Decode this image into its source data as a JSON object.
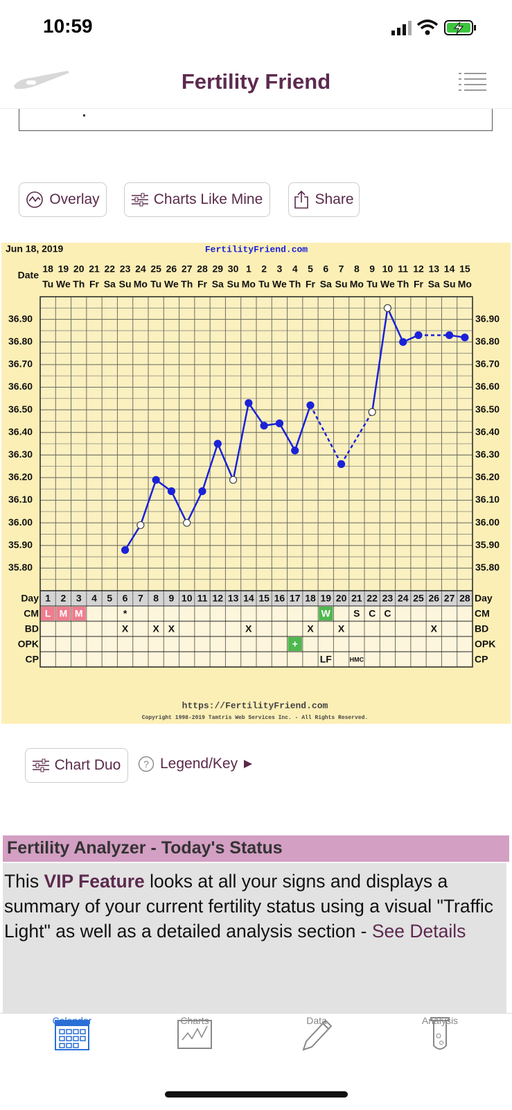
{
  "status_bar": {
    "time": "10:59"
  },
  "header": {
    "title": "Fertility Friend"
  },
  "buttons": [
    "Overlay",
    "Charts Like Mine",
    "Share"
  ],
  "chart_data": {
    "type": "line",
    "title": "Jun 18, 2019",
    "site": "FertilityFriend.com",
    "date_label": "Date",
    "dates": [
      "18",
      "19",
      "20",
      "21",
      "22",
      "23",
      "24",
      "25",
      "26",
      "27",
      "28",
      "29",
      "30",
      "1",
      "2",
      "3",
      "4",
      "5",
      "6",
      "7",
      "8",
      "9",
      "10",
      "11",
      "12",
      "13",
      "14",
      "15"
    ],
    "weekdays": [
      "Tu",
      "We",
      "Th",
      "Fr",
      "Sa",
      "Su",
      "Mo",
      "Tu",
      "We",
      "Th",
      "Fr",
      "Sa",
      "Su",
      "Mo",
      "Tu",
      "We",
      "Th",
      "Fr",
      "Sa",
      "Su",
      "Mo",
      "Tu",
      "We",
      "Th",
      "Fr",
      "Sa",
      "Su",
      "Mo"
    ],
    "x_label": "Day",
    "categories": [
      1,
      2,
      3,
      4,
      5,
      6,
      7,
      8,
      9,
      10,
      11,
      12,
      13,
      14,
      15,
      16,
      17,
      18,
      19,
      20,
      21,
      22,
      23,
      24,
      25,
      26,
      27,
      28
    ],
    "values": [
      null,
      null,
      null,
      null,
      null,
      35.88,
      35.99,
      36.19,
      36.14,
      36.0,
      36.14,
      36.35,
      36.19,
      36.53,
      36.43,
      36.44,
      36.32,
      36.52,
      null,
      36.26,
      null,
      36.49,
      36.95,
      36.8,
      36.83,
      null,
      36.83,
      36.82
    ],
    "color": "#1a22d8",
    "hollow_days": [
      7,
      10,
      13,
      22,
      23
    ],
    "ylim": [
      35.7,
      37.0
    ],
    "yticks": [
      {
        "value": 35.8,
        "label": "35.80"
      },
      {
        "value": 35.9,
        "label": "35.90"
      },
      {
        "value": 36.0,
        "label": "36.00"
      },
      {
        "value": 36.1,
        "label": "36.10"
      },
      {
        "value": 36.2,
        "label": "36.20"
      },
      {
        "value": 36.3,
        "label": "36.30"
      },
      {
        "value": 36.4,
        "label": "36.40"
      },
      {
        "value": 36.5,
        "label": "36.50"
      },
      {
        "value": 36.6,
        "label": "36.60"
      },
      {
        "value": 36.7,
        "label": "36.70"
      },
      {
        "value": 36.8,
        "label": "36.80"
      },
      {
        "value": 36.9,
        "label": "36.90"
      }
    ],
    "grid": true,
    "rows": [
      {
        "label": "CM",
        "cells": [
          "L",
          "M",
          "M",
          null,
          null,
          "*",
          null,
          null,
          null,
          null,
          null,
          null,
          null,
          null,
          null,
          null,
          null,
          null,
          "W",
          null,
          "S",
          "C",
          "C",
          null,
          null,
          null,
          null,
          null
        ],
        "colors": [
          "#ee7d8f",
          "#ee7d8f",
          "#ee7d8f",
          null,
          null,
          null,
          null,
          null,
          null,
          null,
          null,
          null,
          null,
          null,
          null,
          null,
          null,
          null,
          "#4fb84f",
          null,
          null,
          null,
          null,
          null,
          null,
          null,
          null,
          null
        ]
      },
      {
        "label": "BD",
        "cells": [
          null,
          null,
          null,
          null,
          null,
          "X",
          null,
          "X",
          "X",
          null,
          null,
          null,
          null,
          "X",
          null,
          null,
          null,
          "X",
          null,
          "X",
          null,
          null,
          null,
          null,
          null,
          "X",
          null,
          null
        ]
      },
      {
        "label": "OPK",
        "cells": [
          null,
          null,
          null,
          null,
          null,
          null,
          null,
          null,
          null,
          null,
          null,
          null,
          null,
          null,
          null,
          null,
          "+",
          null,
          null,
          null,
          null,
          null,
          null,
          null,
          null,
          null,
          null,
          null
        ],
        "colors": [
          null,
          null,
          null,
          null,
          null,
          null,
          null,
          null,
          null,
          null,
          null,
          null,
          null,
          null,
          null,
          null,
          "#4fb84f",
          null,
          null,
          null,
          null,
          null,
          null,
          null,
          null,
          null,
          null,
          null
        ]
      },
      {
        "label": "CP",
        "cells": [
          null,
          null,
          null,
          null,
          null,
          null,
          null,
          null,
          null,
          null,
          null,
          null,
          null,
          null,
          null,
          null,
          null,
          null,
          "LF",
          null,
          "HMC",
          null,
          null,
          null,
          null,
          null,
          null,
          null
        ]
      }
    ],
    "footer_url": "https://FertilityFriend.com",
    "copyright": "Copyright 1998-2019 Tamtris Web Services Inc. - All Rights Reserved."
  },
  "bottom_buttons": [
    "Chart Duo",
    "Legend/Key"
  ],
  "analyzer": {
    "title": "Fertility Analyzer - Today's Status",
    "text_parts": [
      "This ",
      "VIP Feature",
      " looks at all your signs and displays a summary of your current fertility status using a visual \"Traffic Light\" as well as a detailed analysis section - ",
      "See Details"
    ]
  },
  "tabs": [
    "Calendar",
    "Charts",
    "Data",
    "Analysis"
  ]
}
